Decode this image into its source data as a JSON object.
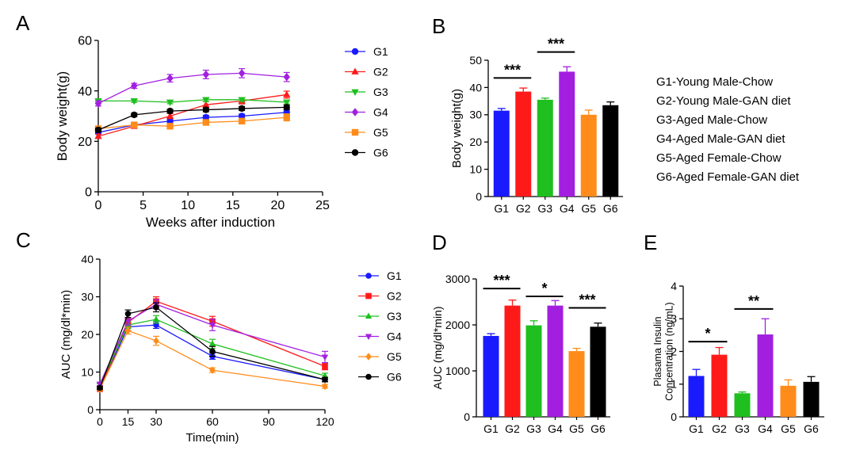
{
  "panel_labels": {
    "A": "A",
    "B": "B",
    "C": "C",
    "D": "D",
    "E": "E"
  },
  "colors": {
    "G1": "#1a1aff",
    "G2": "#ff1a1a",
    "G3": "#1fbf1f",
    "G4": "#a21fe0",
    "G5": "#ff8c1a",
    "G6": "#000000"
  },
  "group_legend": [
    "G1-Young Male-Chow",
    "G2-Young Male-GAN diet",
    "G3-Aged Male-Chow",
    "G4-Aged Male-GAN diet",
    "G5-Aged Female-Chow",
    "G6-Aged Female-GAN diet"
  ],
  "chart_data": [
    {
      "id": "A",
      "type": "line",
      "title": "",
      "xlabel": "Weeks after induction",
      "ylabel": "Body weight(g)",
      "xlim": [
        0,
        25
      ],
      "ylim": [
        0,
        60
      ],
      "xticks": [
        0,
        5,
        10,
        15,
        20,
        25
      ],
      "yticks": [
        0,
        20,
        40,
        60
      ],
      "x": [
        0,
        4,
        8,
        12,
        16,
        21
      ],
      "series": [
        {
          "name": "G1",
          "marker": "circle",
          "values": [
            23.5,
            26.5,
            28,
            29.5,
            30,
            31.5
          ],
          "errors": [
            0.6,
            0.7,
            0.8,
            0.8,
            0.8,
            0.9
          ]
        },
        {
          "name": "G2",
          "marker": "triangle-up",
          "values": [
            22,
            26,
            30,
            34.5,
            36,
            38.5
          ],
          "errors": [
            0.8,
            0.8,
            1,
            1.2,
            1.2,
            1.4
          ]
        },
        {
          "name": "G3",
          "marker": "triangle-down",
          "values": [
            36,
            36,
            35.5,
            36.5,
            36.5,
            35.5
          ],
          "errors": [
            0.6,
            0.6,
            0.6,
            0.7,
            0.7,
            0.7
          ]
        },
        {
          "name": "G4",
          "marker": "diamond",
          "values": [
            35,
            42,
            45,
            46.5,
            47,
            45.5
          ],
          "errors": [
            1,
            1,
            1.5,
            1.7,
            1.8,
            1.8
          ]
        },
        {
          "name": "G5",
          "marker": "square",
          "values": [
            25,
            26.5,
            26,
            27.5,
            28,
            29.5
          ],
          "errors": [
            0.8,
            0.8,
            0.8,
            0.9,
            0.9,
            1.4
          ]
        },
        {
          "name": "G6",
          "marker": "circle",
          "values": [
            24.5,
            30.5,
            32,
            32.5,
            33,
            33.5
          ],
          "errors": [
            0.7,
            0.7,
            0.7,
            0.8,
            0.8,
            0.9
          ]
        }
      ]
    },
    {
      "id": "B",
      "type": "bar",
      "ylabel": "Body weight(g)",
      "ylim": [
        0,
        50
      ],
      "yticks": [
        0,
        10,
        20,
        30,
        40,
        50
      ],
      "categories": [
        "G1",
        "G2",
        "G3",
        "G4",
        "G5",
        "G6"
      ],
      "values": [
        31.5,
        38.5,
        35.5,
        45.8,
        30,
        33.5
      ],
      "errors": [
        0.8,
        1.3,
        0.6,
        1.8,
        1.7,
        1.2
      ],
      "significance": [
        {
          "from": "G1",
          "to": "G2",
          "label": "***",
          "level": 43.5
        },
        {
          "from": "G3",
          "to": "G4",
          "label": "***",
          "level": 53
        }
      ]
    },
    {
      "id": "C",
      "type": "line",
      "xlabel": "Time(min)",
      "ylabel": "AUC (mg/dl*min)",
      "xlim": [
        0,
        120
      ],
      "ylim": [
        0,
        40
      ],
      "xticks": [
        0,
        15,
        30,
        60,
        90,
        120
      ],
      "yticks": [
        0,
        10,
        20,
        30,
        40
      ],
      "x": [
        0,
        15,
        30,
        60,
        120
      ],
      "series": [
        {
          "name": "G1",
          "marker": "circle",
          "values": [
            5.5,
            22,
            22.5,
            14.2,
            8
          ],
          "errors": [
            0.4,
            0.9,
            0.9,
            0.8,
            0.6
          ]
        },
        {
          "name": "G2",
          "marker": "square",
          "values": [
            5.5,
            23.2,
            28.8,
            23.5,
            11.5
          ],
          "errors": [
            0.4,
            1,
            1.2,
            1.3,
            0.9
          ]
        },
        {
          "name": "G3",
          "marker": "triangle-up",
          "values": [
            6.5,
            22.5,
            24,
            17.5,
            9
          ],
          "errors": [
            0.4,
            0.9,
            1,
            1.2,
            0.7
          ]
        },
        {
          "name": "G4",
          "marker": "triangle-down",
          "values": [
            6.8,
            23.5,
            28,
            22.5,
            14
          ],
          "errors": [
            0.4,
            1,
            1.2,
            1.5,
            1.5
          ]
        },
        {
          "name": "G5",
          "marker": "diamond",
          "values": [
            5.5,
            21,
            18.3,
            10.5,
            6.2
          ],
          "errors": [
            0.4,
            0.9,
            1.2,
            0.6,
            0.5
          ]
        },
        {
          "name": "G6",
          "marker": "circle",
          "values": [
            5.8,
            25.5,
            27.2,
            15.5,
            8
          ],
          "errors": [
            0.4,
            1,
            1.2,
            1.3,
            0.6
          ]
        }
      ]
    },
    {
      "id": "D",
      "type": "bar",
      "ylabel": "AUC (mg/dl*min)",
      "ylim": [
        0,
        3000
      ],
      "yticks": [
        0,
        1000,
        2000,
        3000
      ],
      "categories": [
        "G1",
        "G2",
        "G3",
        "G4",
        "G5",
        "G6"
      ],
      "values": [
        1760,
        2420,
        1990,
        2420,
        1430,
        1960
      ],
      "errors": [
        50,
        120,
        100,
        110,
        60,
        80
      ],
      "significance": [
        {
          "from": "G1",
          "to": "G2",
          "label": "***",
          "level": 2790
        },
        {
          "from": "G3",
          "to": "G4",
          "label": "*",
          "level": 2620
        },
        {
          "from": "G5",
          "to": "G6",
          "label": "***",
          "level": 2370
        }
      ]
    },
    {
      "id": "E",
      "type": "bar",
      "ylabel": "Plasama Insulin Concentration (ng/mL)",
      "ylabel_lines": [
        "Plasama Insulin",
        "Concentration (ng/mL)"
      ],
      "ylim": [
        0,
        4
      ],
      "yticks": [
        0,
        1,
        2,
        3,
        4
      ],
      "categories": [
        "G1",
        "G2",
        "G3",
        "G4",
        "G5",
        "G6"
      ],
      "values": [
        1.25,
        1.9,
        0.72,
        2.52,
        0.95,
        1.07
      ],
      "errors": [
        0.2,
        0.22,
        0.04,
        0.48,
        0.18,
        0.16
      ],
      "significance": [
        {
          "from": "G1",
          "to": "G2",
          "label": "*",
          "level": 2.3
        },
        {
          "from": "G3",
          "to": "G4",
          "label": "**",
          "level": 3.3
        }
      ]
    }
  ]
}
